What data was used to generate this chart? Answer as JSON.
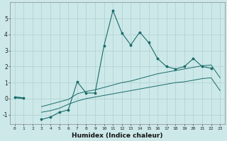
{
  "xlabel": "Humidex (Indice chaleur)",
  "background_color": "#cce8e8",
  "grid_color": "#b0d0d0",
  "line_color": "#1a6b6b",
  "xlim": [
    -0.5,
    23.5
  ],
  "ylim": [
    -1.6,
    6.0
  ],
  "x": [
    0,
    1,
    2,
    3,
    4,
    5,
    6,
    7,
    8,
    9,
    10,
    11,
    12,
    13,
    14,
    15,
    16,
    17,
    18,
    19,
    20,
    21,
    22,
    23
  ],
  "main_line": [
    0.1,
    0.05,
    null,
    -1.3,
    -1.15,
    -0.85,
    -0.7,
    1.05,
    0.35,
    0.35,
    3.3,
    5.5,
    4.1,
    3.35,
    4.15,
    3.5,
    2.5,
    2.0,
    1.85,
    2.0,
    2.5,
    2.0,
    1.9,
    null
  ],
  "upper_line_seg1": [
    [
      0,
      0.1
    ],
    [
      1,
      0.05
    ]
  ],
  "upper_line_seg2": [
    [
      3,
      -0.5
    ],
    [
      4,
      -0.35
    ],
    [
      5,
      -0.2
    ],
    [
      6,
      -0.05
    ],
    [
      7,
      0.3
    ],
    [
      8,
      0.45
    ],
    [
      9,
      0.55
    ],
    [
      10,
      0.7
    ],
    [
      11,
      0.85
    ],
    [
      12,
      1.0
    ],
    [
      13,
      1.1
    ],
    [
      14,
      1.25
    ],
    [
      15,
      1.4
    ],
    [
      16,
      1.55
    ],
    [
      17,
      1.65
    ],
    [
      18,
      1.75
    ],
    [
      19,
      1.85
    ],
    [
      20,
      1.95
    ],
    [
      21,
      2.05
    ],
    [
      22,
      2.1
    ],
    [
      23,
      1.3
    ]
  ],
  "lower_line_seg1": [
    [
      0,
      0.05
    ],
    [
      1,
      0.0
    ]
  ],
  "lower_line_seg2": [
    [
      3,
      -0.85
    ],
    [
      4,
      -0.75
    ],
    [
      5,
      -0.6
    ],
    [
      6,
      -0.35
    ],
    [
      7,
      -0.15
    ],
    [
      8,
      0.0
    ],
    [
      9,
      0.1
    ],
    [
      10,
      0.2
    ],
    [
      11,
      0.3
    ],
    [
      12,
      0.4
    ],
    [
      13,
      0.5
    ],
    [
      14,
      0.6
    ],
    [
      15,
      0.7
    ],
    [
      16,
      0.8
    ],
    [
      17,
      0.9
    ],
    [
      18,
      1.0
    ],
    [
      19,
      1.05
    ],
    [
      20,
      1.15
    ],
    [
      21,
      1.25
    ],
    [
      22,
      1.3
    ],
    [
      23,
      0.5
    ]
  ],
  "yticks": [
    -1,
    0,
    1,
    2,
    3,
    4,
    5
  ],
  "xticks": [
    0,
    1,
    2,
    3,
    4,
    5,
    6,
    7,
    8,
    9,
    10,
    11,
    12,
    13,
    14,
    15,
    16,
    17,
    18,
    19,
    20,
    21,
    22,
    23
  ]
}
